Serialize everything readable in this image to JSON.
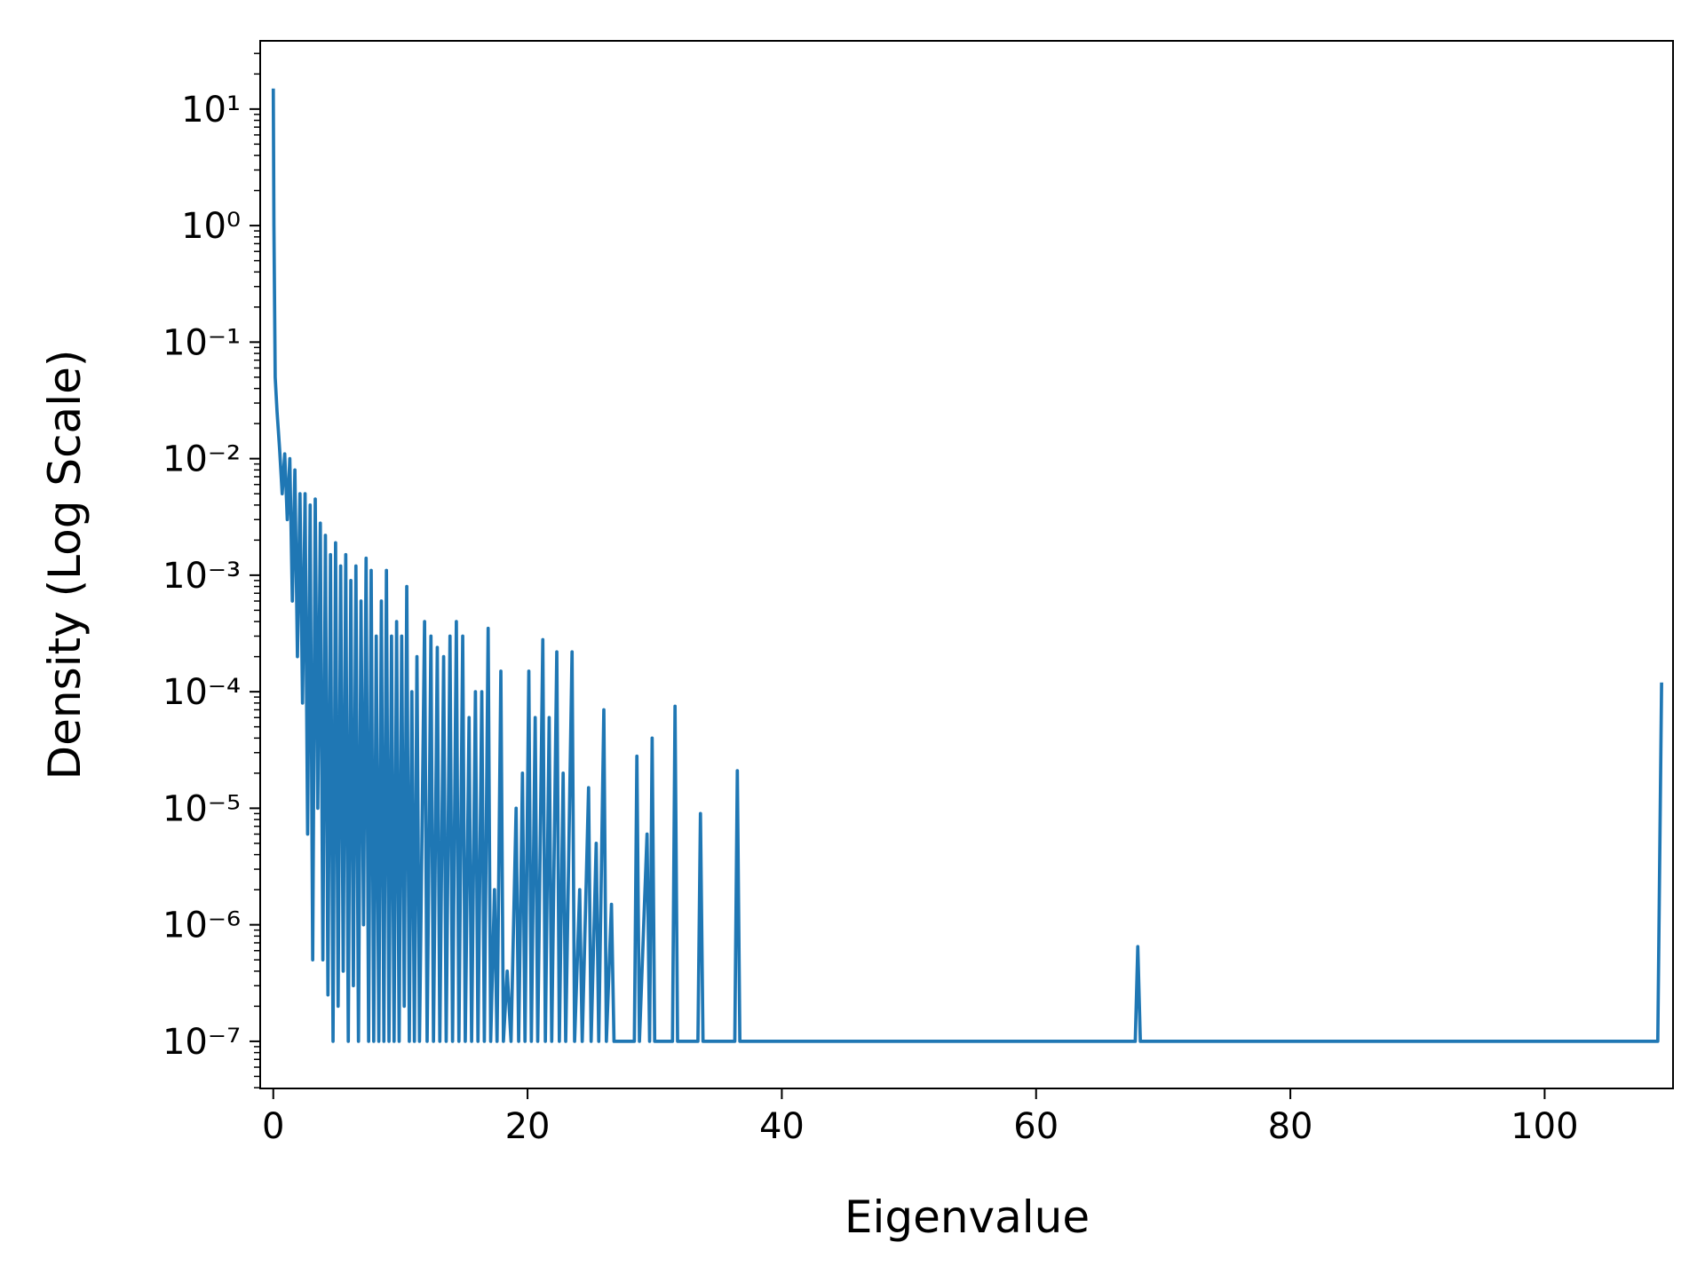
{
  "chart_data": {
    "type": "line",
    "xlabel": "Eigenvalue",
    "ylabel": "Density (Log Scale)",
    "log_y": true,
    "grid": false,
    "color": "#1f77b4",
    "xlim": [
      -1.03,
      110.1
    ],
    "ylim": [
      3.94e-08,
      38.5
    ],
    "xticks": [
      0,
      20,
      40,
      60,
      80,
      100
    ],
    "yticks": [
      {
        "value": 10,
        "label": "10¹"
      },
      {
        "value": 1,
        "label": "10⁰"
      },
      {
        "value": 0.1,
        "label": "10⁻¹"
      },
      {
        "value": 0.01,
        "label": "10⁻²"
      },
      {
        "value": 0.001,
        "label": "10⁻³"
      },
      {
        "value": 0.0001,
        "label": "10⁻⁴"
      },
      {
        "value": 1e-05,
        "label": "10⁻⁵"
      },
      {
        "value": 1e-06,
        "label": "10⁻⁶"
      },
      {
        "value": 1e-07,
        "label": "10⁻⁷"
      }
    ],
    "x": [
      0,
      0.05,
      0.15,
      0.3,
      0.5,
      0.7,
      0.9,
      1.1,
      1.3,
      1.5,
      1.7,
      1.9,
      2.1,
      2.3,
      2.5,
      2.7,
      2.9,
      3.1,
      3.3,
      3.5,
      3.7,
      3.9,
      4.1,
      4.3,
      4.5,
      4.7,
      4.9,
      5.1,
      5.3,
      5.5,
      5.7,
      5.9,
      6.1,
      6.3,
      6.5,
      6.7,
      6.9,
      7.1,
      7.3,
      7.5,
      7.7,
      7.9,
      8.1,
      8.3,
      8.5,
      8.7,
      8.9,
      9.1,
      9.3,
      9.5,
      9.7,
      9.9,
      10.1,
      10.3,
      10.5,
      10.7,
      10.9,
      11.1,
      11.3,
      11.5,
      11.9,
      12.1,
      12.4,
      12.6,
      12.9,
      13.1,
      13.4,
      13.6,
      13.9,
      14.1,
      14.4,
      14.6,
      14.9,
      15.1,
      15.4,
      15.6,
      15.9,
      16.1,
      16.4,
      16.6,
      16.9,
      17.1,
      17.4,
      17.6,
      17.9,
      18.1,
      18.4,
      18.7,
      19.1,
      19.3,
      19.6,
      19.8,
      20.1,
      20.3,
      20.6,
      20.8,
      21.2,
      21.4,
      21.7,
      21.9,
      22.3,
      22.5,
      22.8,
      23.0,
      23.5,
      23.7,
      24.1,
      24.3,
      24.8,
      25.0,
      25.4,
      25.6,
      26.0,
      26.2,
      26.6,
      26.8,
      28.4,
      28.6,
      28.8,
      29.4,
      29.6,
      29.8,
      30.0,
      31.4,
      31.6,
      31.8,
      33.4,
      33.6,
      33.8,
      36.3,
      36.5,
      36.7,
      67.8,
      68.0,
      68.2,
      108.9,
      109.2
    ],
    "values": [
      15,
      1,
      0.05,
      0.025,
      0.012,
      0.005,
      0.011,
      0.003,
      0.01,
      0.0006,
      0.008,
      0.0002,
      0.005,
      8e-05,
      0.005,
      6e-06,
      0.004,
      5e-07,
      0.0045,
      1e-05,
      0.0028,
      5e-07,
      0.0022,
      2.5e-07,
      0.0015,
      1e-07,
      0.0019,
      2e-07,
      0.0012,
      4e-07,
      0.0015,
      1e-07,
      0.0009,
      3e-07,
      0.0012,
      1e-07,
      0.0006,
      1e-06,
      0.0014,
      1e-07,
      0.0011,
      1e-07,
      0.0003,
      1e-07,
      0.0006,
      1e-07,
      0.0011,
      1e-07,
      0.0003,
      1e-07,
      0.0004,
      1e-07,
      0.0003,
      2e-07,
      0.0008,
      1e-07,
      0.0001,
      1e-07,
      0.0002,
      1e-07,
      0.0004,
      1e-07,
      0.0003,
      1e-07,
      0.00024,
      1e-07,
      0.0002,
      1e-07,
      0.0003,
      1e-07,
      0.0004,
      1e-07,
      0.0003,
      1e-07,
      6e-05,
      1e-07,
      0.0001,
      1e-07,
      0.0001,
      1e-07,
      0.00035,
      1e-07,
      2e-06,
      1e-07,
      0.00015,
      1e-07,
      4e-07,
      1e-07,
      1e-05,
      1e-07,
      2e-05,
      1e-07,
      0.00015,
      1e-07,
      6e-05,
      1e-07,
      0.00028,
      1e-07,
      6e-05,
      1e-07,
      0.00022,
      1e-07,
      2e-05,
      1e-07,
      0.00022,
      1e-07,
      2e-06,
      1e-07,
      1.5e-05,
      1e-07,
      5e-06,
      1e-07,
      7e-05,
      1e-07,
      1.5e-06,
      1e-07,
      1e-07,
      2.8e-05,
      1e-07,
      6e-06,
      1e-07,
      4e-05,
      1e-07,
      1e-07,
      7.5e-05,
      1e-07,
      1e-07,
      9e-06,
      1e-07,
      1e-07,
      2.1e-05,
      1e-07,
      1e-07,
      6.5e-07,
      1e-07,
      1e-07,
      0.00012
    ]
  }
}
